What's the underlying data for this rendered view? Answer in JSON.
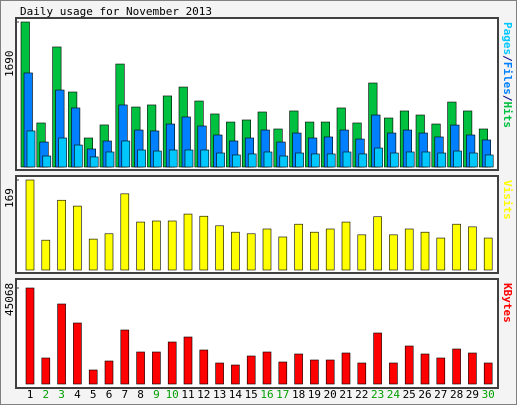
{
  "chart_data": [
    {
      "type": "bar",
      "title": "Daily usage for November 2013",
      "separator": "/",
      "ylim": [
        0,
        1690
      ],
      "yticks": [
        1690
      ],
      "series": [
        {
          "name": "Hits",
          "color": "#00c040",
          "values": [
            1690,
            513,
            1399,
            874,
            338,
            490,
            1200,
            699,
            723,
            828,
            932,
            769,
            618,
            524,
            548,
            641,
            443,
            653,
            524,
            524,
            688,
            513,
            979,
            571,
            653,
            606,
            501,
            757,
            653,
            443
          ]
        },
        {
          "name": "Files",
          "color": "#0080ff",
          "values": [
            1096,
            291,
            897,
            688,
            210,
            303,
            723,
            431,
            420,
            501,
            583,
            478,
            373,
            303,
            338,
            431,
            291,
            396,
            338,
            350,
            431,
            326,
            606,
            396,
            431,
            396,
            350,
            489,
            373,
            315
          ]
        },
        {
          "name": "Pages",
          "color": "#00c8ff",
          "values": [
            420,
            128,
            338,
            256,
            117,
            175,
            303,
            198,
            186,
            198,
            198,
            198,
            163,
            140,
            152,
            175,
            128,
            163,
            152,
            152,
            175,
            152,
            221,
            163,
            175,
            175,
            163,
            186,
            163,
            140
          ]
        }
      ]
    },
    {
      "type": "bar",
      "ylim": [
        0,
        169
      ],
      "yticks": [
        169
      ],
      "series": [
        {
          "name": "Visits",
          "color": "#ffff00",
          "values": [
            169,
            56,
            131,
            120,
            58,
            68,
            143,
            90,
            92,
            92,
            105,
            101,
            83,
            71,
            68,
            77,
            62,
            86,
            71,
            77,
            90,
            66,
            100,
            66,
            77,
            71,
            60,
            86,
            81,
            60
          ]
        }
      ]
    },
    {
      "type": "bar",
      "ylim": [
        0,
        45068
      ],
      "yticks": [
        45068
      ],
      "categories": [
        "1",
        "2",
        "3",
        "4",
        "5",
        "6",
        "7",
        "8",
        "9",
        "10",
        "11",
        "12",
        "13",
        "14",
        "15",
        "16",
        "17",
        "18",
        "19",
        "20",
        "21",
        "22",
        "23",
        "24",
        "25",
        "26",
        "27",
        "28",
        "29",
        "30"
      ],
      "category_colors": [
        "#000000",
        "#00a000",
        "#00a000",
        "#000000",
        "#000000",
        "#000000",
        "#000000",
        "#000000",
        "#00a000",
        "#00a000",
        "#000000",
        "#000000",
        "#000000",
        "#000000",
        "#000000",
        "#00a000",
        "#00a000",
        "#000000",
        "#000000",
        "#000000",
        "#000000",
        "#000000",
        "#00a000",
        "#00a000",
        "#000000",
        "#000000",
        "#000000",
        "#000000",
        "#000000",
        "#00a000"
      ],
      "series": [
        {
          "name": "KBytes",
          "color": "#ff0000",
          "values": [
            45068,
            12206,
            37557,
            28637,
            6572,
            10798,
            25351,
            15023,
            15023,
            19717,
            22065,
            15962,
            9859,
            8920,
            13145,
            15023,
            10328,
            14084,
            11267,
            11267,
            14553,
            9859,
            23942,
            9859,
            17839,
            14084,
            12206,
            16431,
            14553,
            9859
          ]
        }
      ]
    }
  ]
}
